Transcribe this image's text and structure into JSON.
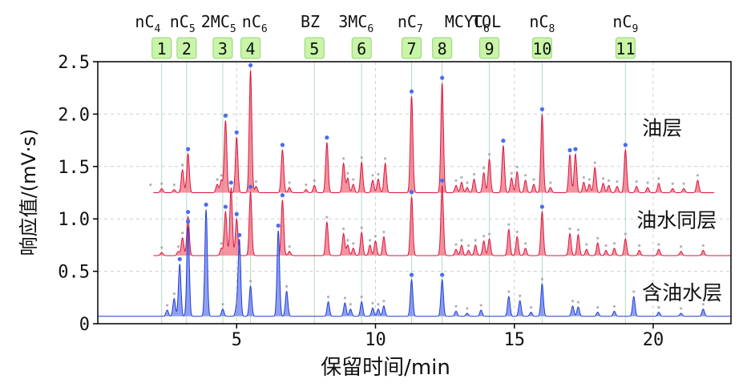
{
  "chart_data": {
    "type": "line",
    "xlabel": "保留时间/min",
    "ylabel": "响应值/(mV·s)",
    "xlim": [
      0,
      22.8
    ],
    "ylim": [
      0,
      2.5
    ],
    "xticks": [
      5,
      10,
      15,
      20
    ],
    "yticks": [
      0,
      0.5,
      1.0,
      1.5,
      2.0,
      2.5
    ],
    "xtick_labels": [
      "5",
      "10",
      "15",
      "20"
    ],
    "ytick_labels": [
      "0",
      "0.5",
      "1.0",
      "1.5",
      "2.0",
      "2.5"
    ],
    "grid": true,
    "legend": "none",
    "peak_markers": [
      {
        "num": "1",
        "x": 2.3,
        "label": "nC4"
      },
      {
        "num": "2",
        "x": 3.2,
        "label": "nC5"
      },
      {
        "num": "3",
        "x": 4.5,
        "label": "2MC5"
      },
      {
        "num": "4",
        "x": 5.5,
        "label": "nC6"
      },
      {
        "num": "5",
        "x": 7.8,
        "label": "BZ"
      },
      {
        "num": "6",
        "x": 9.5,
        "label": "3MC6"
      },
      {
        "num": "7",
        "x": 11.3,
        "label": "nC7"
      },
      {
        "num": "8",
        "x": 12.4,
        "label": "MCYC6"
      },
      {
        "num": "9",
        "x": 14.1,
        "label": "TOL"
      },
      {
        "num": "10",
        "x": 16.0,
        "label": "nC8"
      },
      {
        "num": "11",
        "x": 19.0,
        "label": "nC9"
      }
    ],
    "top_labels": [
      {
        "x": 1.8,
        "base": "nC",
        "sub": "4"
      },
      {
        "x": 3.05,
        "base": "nC",
        "sub": "5"
      },
      {
        "x": 4.35,
        "base": "2MC",
        "sub": "5"
      },
      {
        "x": 5.65,
        "base": "nC",
        "sub": "6"
      },
      {
        "x": 7.65,
        "base": "BZ",
        "sub": ""
      },
      {
        "x": 9.3,
        "base": "3MC",
        "sub": "6"
      },
      {
        "x": 11.25,
        "base": "nC",
        "sub": "7"
      },
      {
        "x": 13.3,
        "base": "MCYC",
        "sub": "6"
      },
      {
        "x": 14.0,
        "base": "TOL",
        "sub": ""
      },
      {
        "x": 16.0,
        "base": "nC",
        "sub": "8"
      },
      {
        "x": 19.0,
        "base": "nC",
        "sub": "9"
      }
    ],
    "series": [
      {
        "name": "油层",
        "baseline": 1.25,
        "x_start": 2.0,
        "x_end": 22.2,
        "color": "#dc143c",
        "fill": "#f07080",
        "label_x": 19.6,
        "label_y": 1.8,
        "peaks": [
          [
            1.9,
            0.03
          ],
          [
            2.3,
            0.04
          ],
          [
            2.75,
            0.03
          ],
          [
            3.05,
            0.22
          ],
          [
            3.25,
            0.37
          ],
          [
            4.3,
            0.08
          ],
          [
            4.45,
            0.12
          ],
          [
            4.6,
            0.69
          ],
          [
            5.0,
            0.53
          ],
          [
            5.5,
            1.17
          ],
          [
            5.7,
            0.06
          ],
          [
            6.65,
            0.41
          ],
          [
            6.9,
            0.05
          ],
          [
            7.5,
            0.03
          ],
          [
            7.8,
            0.07
          ],
          [
            8.25,
            0.48
          ],
          [
            8.85,
            0.28
          ],
          [
            9.0,
            0.14
          ],
          [
            9.2,
            0.08
          ],
          [
            9.5,
            0.29
          ],
          [
            9.9,
            0.12
          ],
          [
            10.1,
            0.13
          ],
          [
            10.35,
            0.28
          ],
          [
            11.3,
            0.92
          ],
          [
            12.4,
            1.05
          ],
          [
            12.9,
            0.07
          ],
          [
            13.1,
            0.1
          ],
          [
            13.3,
            0.05
          ],
          [
            13.55,
            0.13
          ],
          [
            13.9,
            0.19
          ],
          [
            14.1,
            0.32
          ],
          [
            14.6,
            0.45
          ],
          [
            14.9,
            0.14
          ],
          [
            15.1,
            0.2
          ],
          [
            15.4,
            0.12
          ],
          [
            15.7,
            0.08
          ],
          [
            16.0,
            0.75
          ],
          [
            16.3,
            0.05
          ],
          [
            17.0,
            0.36
          ],
          [
            17.2,
            0.37
          ],
          [
            17.5,
            0.1
          ],
          [
            17.7,
            0.08
          ],
          [
            17.9,
            0.24
          ],
          [
            18.2,
            0.09
          ],
          [
            18.4,
            0.07
          ],
          [
            18.7,
            0.06
          ],
          [
            19.0,
            0.41
          ],
          [
            19.4,
            0.06
          ],
          [
            19.8,
            0.05
          ],
          [
            20.2,
            0.09
          ],
          [
            20.7,
            0.04
          ],
          [
            21.1,
            0.04
          ],
          [
            21.6,
            0.12
          ]
        ]
      },
      {
        "name": "油水同层",
        "baseline": 0.65,
        "x_start": 2.0,
        "x_end": 22.8,
        "color": "#dc143c",
        "fill": "#f07080",
        "label_x": 19.4,
        "label_y": 0.92,
        "peaks": [
          [
            2.3,
            0.03
          ],
          [
            2.9,
            0.04
          ],
          [
            3.05,
            0.17
          ],
          [
            3.25,
            0.37
          ],
          [
            4.45,
            0.07
          ],
          [
            4.6,
            0.42
          ],
          [
            4.8,
            0.65
          ],
          [
            5.0,
            0.35
          ],
          [
            5.5,
            0.61
          ],
          [
            6.65,
            0.53
          ],
          [
            6.9,
            0.04
          ],
          [
            8.25,
            0.32
          ],
          [
            8.85,
            0.21
          ],
          [
            9.0,
            0.1
          ],
          [
            9.2,
            0.07
          ],
          [
            9.5,
            0.22
          ],
          [
            9.8,
            0.1
          ],
          [
            10.0,
            0.14
          ],
          [
            10.3,
            0.18
          ],
          [
            11.3,
            0.56
          ],
          [
            12.4,
            0.67
          ],
          [
            12.9,
            0.06
          ],
          [
            13.1,
            0.1
          ],
          [
            13.35,
            0.05
          ],
          [
            13.6,
            0.1
          ],
          [
            13.9,
            0.14
          ],
          [
            14.1,
            0.16
          ],
          [
            14.8,
            0.25
          ],
          [
            15.1,
            0.18
          ],
          [
            15.4,
            0.07
          ],
          [
            16.0,
            0.42
          ],
          [
            17.0,
            0.21
          ],
          [
            17.3,
            0.2
          ],
          [
            17.6,
            0.06
          ],
          [
            18.0,
            0.12
          ],
          [
            18.3,
            0.05
          ],
          [
            18.6,
            0.07
          ],
          [
            19.0,
            0.16
          ],
          [
            19.5,
            0.05
          ],
          [
            20.2,
            0.06
          ],
          [
            21.0,
            0.04
          ],
          [
            21.8,
            0.05
          ]
        ]
      },
      {
        "name": "含油水层",
        "baseline": 0.07,
        "x_start": 0.0,
        "x_end": 22.8,
        "color": "#1f3fd6",
        "fill": "#6a80f0",
        "label_x": 19.6,
        "label_y": 0.23,
        "peaks": [
          [
            2.5,
            0.06
          ],
          [
            2.75,
            0.17
          ],
          [
            2.95,
            0.5
          ],
          [
            3.25,
            0.86
          ],
          [
            3.9,
            1.02
          ],
          [
            4.5,
            0.07
          ],
          [
            5.0,
            0.09
          ],
          [
            5.1,
            0.73
          ],
          [
            5.5,
            0.29
          ],
          [
            6.5,
            0.82
          ],
          [
            6.8,
            0.24
          ],
          [
            8.3,
            0.14
          ],
          [
            8.9,
            0.13
          ],
          [
            9.1,
            0.07
          ],
          [
            9.5,
            0.14
          ],
          [
            9.9,
            0.08
          ],
          [
            10.1,
            0.07
          ],
          [
            10.3,
            0.1
          ],
          [
            11.3,
            0.35
          ],
          [
            12.4,
            0.35
          ],
          [
            12.9,
            0.05
          ],
          [
            13.3,
            0.03
          ],
          [
            13.8,
            0.06
          ],
          [
            14.8,
            0.19
          ],
          [
            15.2,
            0.15
          ],
          [
            15.6,
            0.04
          ],
          [
            16.0,
            0.31
          ],
          [
            17.1,
            0.1
          ],
          [
            17.3,
            0.09
          ],
          [
            18.0,
            0.04
          ],
          [
            18.6,
            0.05
          ],
          [
            19.3,
            0.19
          ],
          [
            20.2,
            0.04
          ],
          [
            21.0,
            0.03
          ],
          [
            21.8,
            0.07
          ]
        ]
      }
    ]
  }
}
